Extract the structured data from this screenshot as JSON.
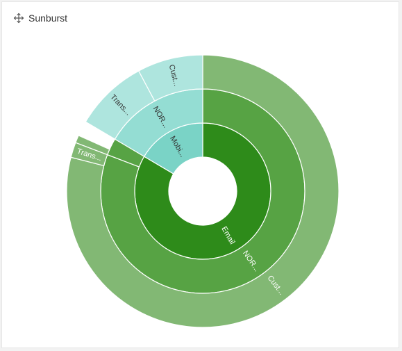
{
  "widget": {
    "title": "Sunburst",
    "move_icon": "move-icon"
  },
  "chart_data": {
    "type": "sunburst",
    "title": "",
    "nodes": [
      {
        "id": "email",
        "parent": null,
        "label": "Email",
        "value": 83.5,
        "depth": 0,
        "color": "#2e8b1a",
        "text_color": "#ffffff"
      },
      {
        "id": "mobi",
        "parent": null,
        "label": "Mobi...",
        "value": 16.5,
        "depth": 0,
        "color": "#7ad3c6",
        "text_color": "#333333"
      },
      {
        "id": "nor_email",
        "parent": "email",
        "label": "NOR...",
        "value": 80.8,
        "depth": 1,
        "color": "#57a344",
        "text_color": "#ffffff"
      },
      {
        "id": "thin_email",
        "parent": "email",
        "label": "",
        "value": 2.7,
        "depth": 1,
        "color": "#57a344",
        "text_color": "#ffffff"
      },
      {
        "id": "nor_mobi",
        "parent": "mobi",
        "label": "NOR...",
        "value": 16.5,
        "depth": 1,
        "color": "#94ddd3",
        "text_color": "#333333"
      },
      {
        "id": "cust_email",
        "parent": "nor_email",
        "label": "Cust...",
        "value": 79.0,
        "depth": 2,
        "color": "#82b874",
        "text_color": "#ffffff"
      },
      {
        "id": "trans_email",
        "parent": "nor_email",
        "label": "Trans...",
        "value": 1.8,
        "depth": 2,
        "color": "#82b874",
        "text_color": "#ffffff"
      },
      {
        "id": "thin2_email",
        "parent": "thin_email",
        "label": "",
        "value": 0.9,
        "depth": 2,
        "color": "#82b874",
        "text_color": "#ffffff"
      },
      {
        "id": "trans_mobi",
        "parent": "nor_mobi",
        "label": "Trans...",
        "value": 8.7,
        "depth": 2,
        "color": "#aee5de",
        "text_color": "#333333"
      },
      {
        "id": "cust_mobi",
        "parent": "nor_mobi",
        "label": "Cust...",
        "value": 7.8,
        "depth": 2,
        "color": "#aee5de",
        "text_color": "#333333"
      }
    ]
  }
}
